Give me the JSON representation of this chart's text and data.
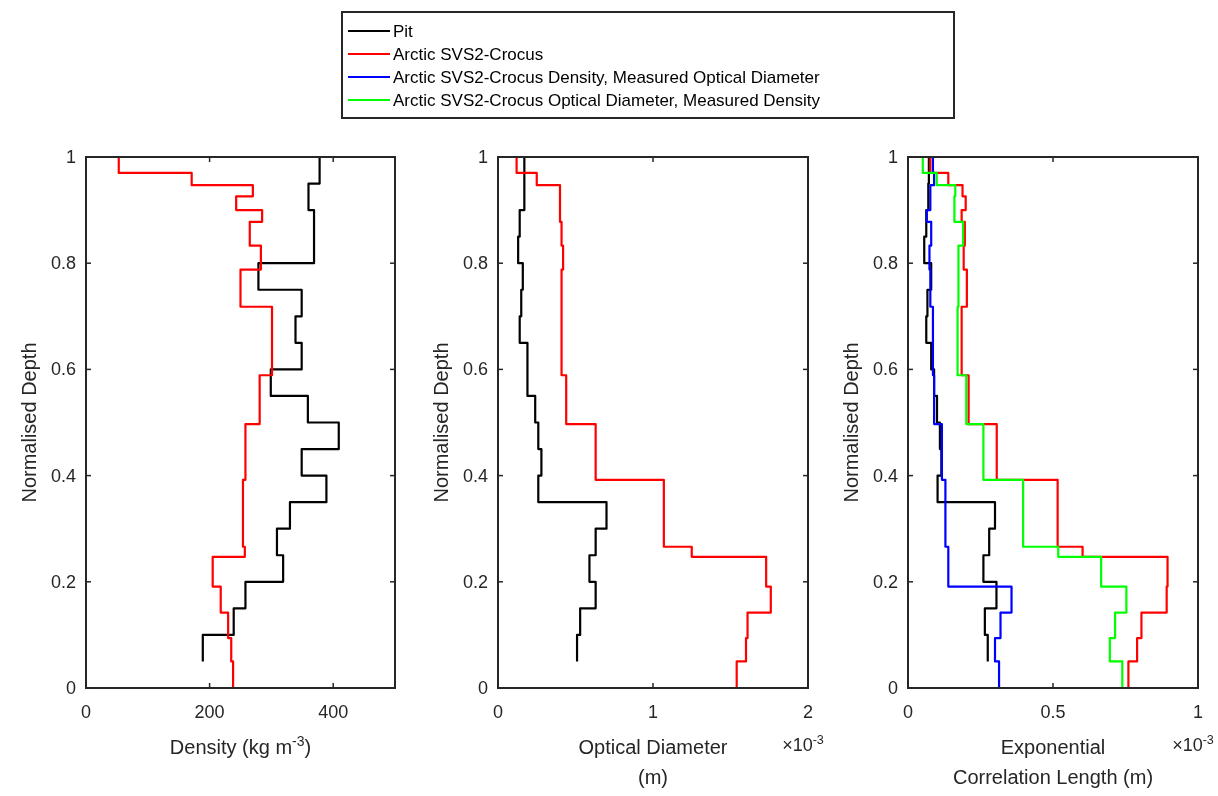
{
  "chart_data": [
    {
      "type": "step",
      "orientation": "horizontal",
      "xlabel": "Density (kg m$^{-3}$)",
      "ylabel": "Normalised Depth",
      "xlim": [
        0,
        500
      ],
      "xticks": [
        0,
        200,
        400
      ],
      "ylim": [
        0,
        1
      ],
      "yticks": [
        0,
        0.2,
        0.4,
        0.6,
        0.8,
        1
      ],
      "grid": false,
      "legend": false,
      "series": [
        {
          "color": "#000000",
          "x": [
            1,
            0.95,
            0.9,
            0.85,
            0.8,
            0.75,
            0.7,
            0.65,
            0.6,
            0.55,
            0.5,
            0.45,
            0.4,
            0.35,
            0.3,
            0.25,
            0.2,
            0.15,
            0.1,
            0.05
          ],
          "values": [
            378,
            360,
            369,
            369,
            279,
            349,
            339,
            349,
            299,
            359,
            409,
            349,
            389,
            330,
            309,
            319,
            258,
            239,
            189,
            189
          ]
        },
        {
          "color": "#ff0000",
          "x": [
            1,
            0.97,
            0.947,
            0.926,
            0.9,
            0.878,
            0.833,
            0.788,
            0.718,
            0.589,
            0.497,
            0.392,
            0.266,
            0.247,
            0.191,
            0.142,
            0.094,
            0.05,
            0
          ],
          "values": [
            53,
            171,
            270,
            243,
            285,
            265,
            283,
            250,
            301,
            281,
            258,
            254,
            257,
            205,
            218,
            230,
            235,
            238,
            238
          ]
        }
      ]
    },
    {
      "type": "step",
      "orientation": "horizontal",
      "xlabel": "Optical Diameter\n(m)",
      "ylabel": "Normalised Depth",
      "xlim": [
        0,
        2
      ],
      "xticks": [
        0,
        1,
        2
      ],
      "ylim": [
        0,
        1
      ],
      "yticks": [
        0,
        0.2,
        0.4,
        0.6,
        0.8,
        1
      ],
      "grid": false,
      "legend": false,
      "annotations": [
        "×10$^{-3}$"
      ],
      "series": [
        {
          "color": "#000000",
          "x": [
            1,
            0.95,
            0.9,
            0.85,
            0.8,
            0.75,
            0.7,
            0.65,
            0.6,
            0.55,
            0.5,
            0.45,
            0.4,
            0.35,
            0.3,
            0.25,
            0.2,
            0.15,
            0.1,
            0.05
          ],
          "values": [
            0.17,
            0.17,
            0.14,
            0.13,
            0.16,
            0.15,
            0.14,
            0.19,
            0.19,
            0.24,
            0.26,
            0.28,
            0.26,
            0.7,
            0.63,
            0.59,
            0.63,
            0.53,
            0.51,
            0.51
          ]
        },
        {
          "color": "#ff0000",
          "x": [
            1,
            0.97,
            0.947,
            0.926,
            0.9,
            0.878,
            0.833,
            0.788,
            0.718,
            0.589,
            0.497,
            0.392,
            0.266,
            0.247,
            0.191,
            0.142,
            0.094,
            0.05,
            0
          ],
          "values": [
            0.12,
            0.25,
            0.4,
            0.4,
            0.4,
            0.41,
            0.42,
            0.41,
            0.41,
            0.44,
            0.63,
            1.07,
            1.25,
            1.73,
            1.76,
            1.61,
            1.6,
            1.54,
            1.54
          ]
        }
      ]
    },
    {
      "type": "step",
      "orientation": "horizontal",
      "xlabel": "Exponential\nCorrelation Length (m)",
      "ylabel": "Normalised Depth",
      "xlim": [
        0,
        1
      ],
      "xticks": [
        0,
        0.5,
        1
      ],
      "ylim": [
        0,
        1
      ],
      "yticks": [
        0,
        0.2,
        0.4,
        0.6,
        0.8,
        1
      ],
      "grid": false,
      "legend": "top",
      "annotations": [
        "×10$^{-3}$"
      ],
      "series": [
        {
          "name": "Pit",
          "color": "#000000",
          "x": [
            1,
            0.95,
            0.9,
            0.85,
            0.8,
            0.75,
            0.7,
            0.65,
            0.6,
            0.55,
            0.5,
            0.45,
            0.4,
            0.35,
            0.3,
            0.25,
            0.2,
            0.15,
            0.1,
            0.05
          ],
          "values": [
            0.072,
            0.07,
            0.063,
            0.056,
            0.08,
            0.067,
            0.063,
            0.08,
            0.09,
            0.1,
            0.11,
            0.115,
            0.102,
            0.3,
            0.28,
            0.26,
            0.305,
            0.265,
            0.275,
            0.275
          ]
        },
        {
          "name": "Arctic SVS2-Crocus",
          "color": "#ff0000",
          "x": [
            1,
            0.97,
            0.947,
            0.926,
            0.9,
            0.878,
            0.833,
            0.788,
            0.718,
            0.589,
            0.497,
            0.392,
            0.266,
            0.247,
            0.191,
            0.142,
            0.094,
            0.05,
            0
          ],
          "values": [
            0.077,
            0.139,
            0.188,
            0.199,
            0.185,
            0.196,
            0.192,
            0.203,
            0.185,
            0.209,
            0.306,
            0.516,
            0.602,
            0.895,
            0.892,
            0.805,
            0.79,
            0.76,
            0.76
          ]
        },
        {
          "name": "Arctic SVS2-Crocus Density, Measured Optical Diameter",
          "color": "#0000ff",
          "x": [
            1,
            0.97,
            0.947,
            0.926,
            0.9,
            0.878,
            0.833,
            0.788,
            0.718,
            0.589,
            0.497,
            0.392,
            0.266,
            0.247,
            0.191,
            0.142,
            0.094,
            0.05,
            0
          ],
          "values": [
            0.086,
            0.09,
            0.077,
            0.077,
            0.065,
            0.08,
            0.074,
            0.077,
            0.086,
            0.09,
            0.117,
            0.129,
            0.139,
            0.139,
            0.357,
            0.319,
            0.3,
            0.314,
            0.314
          ]
        },
        {
          "name": "Arctic SVS2-Crocus Optical Diameter, Measured Density",
          "color": "#00ff00",
          "x": [
            1,
            0.97,
            0.947,
            0.926,
            0.9,
            0.878,
            0.833,
            0.788,
            0.718,
            0.589,
            0.497,
            0.392,
            0.266,
            0.247,
            0.191,
            0.142,
            0.094,
            0.05,
            0
          ],
          "values": [
            0.051,
            0.099,
            0.163,
            0.16,
            0.16,
            0.19,
            0.174,
            0.174,
            0.171,
            0.201,
            0.26,
            0.397,
            0.518,
            0.666,
            0.753,
            0.714,
            0.696,
            0.739,
            0.739
          ]
        }
      ]
    }
  ]
}
